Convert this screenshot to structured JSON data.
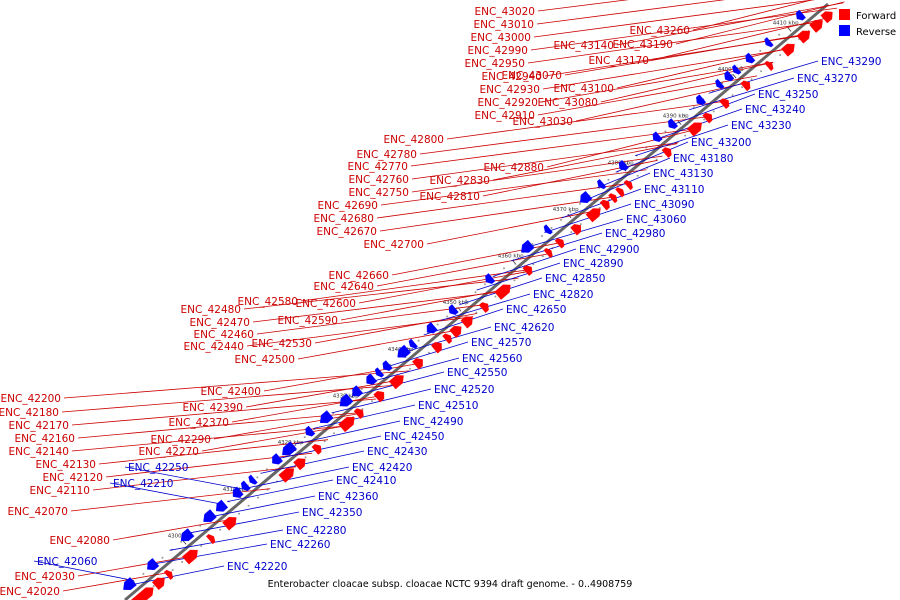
{
  "colors": {
    "forward": "#ff0000",
    "reverse": "#0000ff",
    "forward_label": "#cc0000",
    "reverse_label": "#0000cc",
    "backbone": "#666666"
  },
  "legend": {
    "forward_label": "Forward",
    "reverse_label": "Reverse"
  },
  "caption": "Enterobacter cloacae subsp. cloacae NCTC 9394 draft genome. - 0..4908759",
  "axis_ticks": [
    "4300 kbp",
    "4310 kbp",
    "4320 kbp",
    "4330 kbp",
    "4340 kbp",
    "4350 kbp",
    "4360 kbp",
    "4370 kbp",
    "4380 kbp",
    "4390 kbp",
    "4400 kbp",
    "4410 kbp"
  ],
  "forward_genes": [
    "ENC_42020",
    "ENC_42030",
    "ENC_42070",
    "ENC_42080",
    "ENC_42110",
    "ENC_42120",
    "ENC_42130",
    "ENC_42140",
    "ENC_42160",
    "ENC_42170",
    "ENC_42180",
    "ENC_42200",
    "ENC_42270",
    "ENC_42290",
    "ENC_42370",
    "ENC_42390",
    "ENC_42400",
    "ENC_42440",
    "ENC_42460",
    "ENC_42470",
    "ENC_42480",
    "ENC_42500",
    "ENC_42530",
    "ENC_42580",
    "ENC_42590",
    "ENC_42600",
    "ENC_42640",
    "ENC_42660",
    "ENC_42670",
    "ENC_42680",
    "ENC_42690",
    "ENC_42700",
    "ENC_42750",
    "ENC_42760",
    "ENC_42770",
    "ENC_42780",
    "ENC_42800",
    "ENC_42810",
    "ENC_42830",
    "ENC_42880",
    "ENC_42910",
    "ENC_42920",
    "ENC_42930",
    "ENC_42940",
    "ENC_42950",
    "ENC_42990",
    "ENC_43000",
    "ENC_43010",
    "ENC_43020",
    "ENC_43030",
    "ENC_43070",
    "ENC_43080",
    "ENC_43100",
    "ENC_43140",
    "ENC_43170",
    "ENC_43190",
    "ENC_43260"
  ],
  "reverse_genes": [
    "ENC_42060",
    "ENC_42210",
    "ENC_42220",
    "ENC_42250",
    "ENC_42260",
    "ENC_42280",
    "ENC_42350",
    "ENC_42360",
    "ENC_42410",
    "ENC_42420",
    "ENC_42430",
    "ENC_42450",
    "ENC_42490",
    "ENC_42510",
    "ENC_42520",
    "ENC_42550",
    "ENC_42560",
    "ENC_42570",
    "ENC_42620",
    "ENC_42650",
    "ENC_42820",
    "ENC_42850",
    "ENC_42890",
    "ENC_42900",
    "ENC_42980",
    "ENC_43060",
    "ENC_43090",
    "ENC_43110",
    "ENC_43130",
    "ENC_43180",
    "ENC_43200",
    "ENC_43230",
    "ENC_43240",
    "ENC_43250",
    "ENC_43270",
    "ENC_43290"
  ]
}
